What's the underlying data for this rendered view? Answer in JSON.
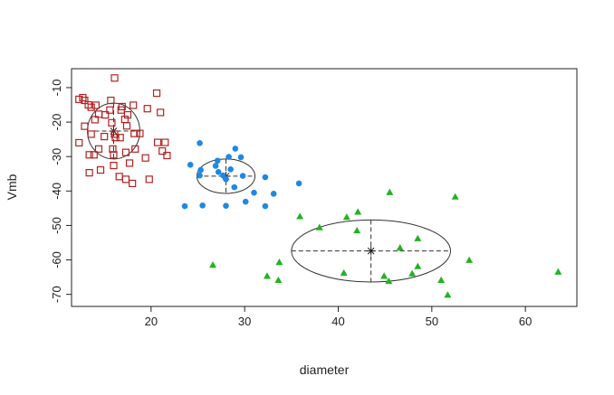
{
  "chart_data": {
    "type": "scatter",
    "title": "",
    "xlabel": "diameter",
    "ylabel": "Vmb",
    "xlim": [
      11.5,
      65.5
    ],
    "ylim": [
      -73.5,
      -4.5
    ],
    "x_ticks": [
      20,
      30,
      40,
      50,
      60
    ],
    "y_ticks": [
      -10,
      -20,
      -30,
      -40,
      -50,
      -60,
      -70
    ],
    "grid": false,
    "legend": "none",
    "series": [
      {
        "marker": "open-square",
        "color": "#b22222",
        "points": [
          [
            16.1,
            -7.2
          ],
          [
            20.6,
            -11.6
          ],
          [
            12.7,
            -12.9
          ],
          [
            12.3,
            -13.4
          ],
          [
            12.9,
            -13.7
          ],
          [
            15.7,
            -13.7
          ],
          [
            13.3,
            -15.0
          ],
          [
            14.1,
            -15.1
          ],
          [
            18.1,
            -15.1
          ],
          [
            16.9,
            -15.5
          ],
          [
            13.6,
            -15.7
          ],
          [
            19.6,
            -16.1
          ],
          [
            15.6,
            -16.5
          ],
          [
            16.8,
            -16.5
          ],
          [
            14.4,
            -17.7
          ],
          [
            21.0,
            -17.2
          ],
          [
            15.1,
            -17.9
          ],
          [
            17.5,
            -17.9
          ],
          [
            14.0,
            -19.3
          ],
          [
            17.2,
            -19.2
          ],
          [
            12.9,
            -21.2
          ],
          [
            15.8,
            -20.2
          ],
          [
            17.4,
            -21.1
          ],
          [
            13.6,
            -23.5
          ],
          [
            16.1,
            -23.5
          ],
          [
            18.2,
            -23.3
          ],
          [
            18.8,
            -23.3
          ],
          [
            15.0,
            -24.2
          ],
          [
            16.2,
            -24.5
          ],
          [
            16.7,
            -24.5
          ],
          [
            12.3,
            -26.0
          ],
          [
            20.7,
            -25.9
          ],
          [
            21.5,
            -25.9
          ],
          [
            14.4,
            -27.8
          ],
          [
            15.9,
            -27.8
          ],
          [
            18.3,
            -27.8
          ],
          [
            17.3,
            -28.8
          ],
          [
            21.2,
            -28.4
          ],
          [
            13.4,
            -29.5
          ],
          [
            16.0,
            -29.5
          ],
          [
            13.9,
            -29.5
          ],
          [
            21.7,
            -29.7
          ],
          [
            19.4,
            -30.4
          ],
          [
            17.7,
            -31.9
          ],
          [
            16.0,
            -32.6
          ],
          [
            14.6,
            -33.9
          ],
          [
            13.4,
            -34.7
          ],
          [
            16.6,
            -35.8
          ],
          [
            19.8,
            -36.6
          ],
          [
            17.3,
            -36.6
          ],
          [
            18.0,
            -37.8
          ]
        ]
      },
      {
        "marker": "filled-circle",
        "color": "#1e88e5",
        "points": [
          [
            25.2,
            -26.1
          ],
          [
            29.0,
            -27.7
          ],
          [
            28.3,
            -30.1
          ],
          [
            29.6,
            -30.2
          ],
          [
            27.1,
            -31.2
          ],
          [
            26.9,
            -32.7
          ],
          [
            24.2,
            -32.4
          ],
          [
            25.3,
            -33.9
          ],
          [
            28.5,
            -33.7
          ],
          [
            27.2,
            -34.5
          ],
          [
            27.7,
            -35.5
          ],
          [
            25.2,
            -35.5
          ],
          [
            29.8,
            -35.6
          ],
          [
            28.0,
            -36.6
          ],
          [
            32.2,
            -36.0
          ],
          [
            35.8,
            -37.8
          ],
          [
            28.9,
            -38.9
          ],
          [
            31.0,
            -40.5
          ],
          [
            33.1,
            -40.8
          ],
          [
            30.1,
            -43.1
          ],
          [
            25.5,
            -44.2
          ],
          [
            28.0,
            -44.3
          ],
          [
            32.2,
            -44.4
          ],
          [
            23.6,
            -44.4
          ]
        ]
      },
      {
        "marker": "filled-triangle",
        "color": "#22b222",
        "points": [
          [
            45.5,
            -40.4
          ],
          [
            52.5,
            -41.7
          ],
          [
            42.1,
            -46.1
          ],
          [
            40.9,
            -47.6
          ],
          [
            35.9,
            -47.4
          ],
          [
            38.0,
            -50.6
          ],
          [
            42.0,
            -51.5
          ],
          [
            48.5,
            -53.8
          ],
          [
            46.6,
            -56.5
          ],
          [
            54.0,
            -60.1
          ],
          [
            33.7,
            -60.7
          ],
          [
            48.5,
            -61.9
          ],
          [
            26.6,
            -61.5
          ],
          [
            40.6,
            -63.8
          ],
          [
            47.9,
            -64.0
          ],
          [
            63.5,
            -63.5
          ],
          [
            32.4,
            -64.7
          ],
          [
            44.9,
            -64.7
          ],
          [
            45.4,
            -66.2
          ],
          [
            33.6,
            -65.9
          ],
          [
            51.0,
            -65.9
          ],
          [
            51.7,
            -70.2
          ]
        ]
      }
    ],
    "ellipses": [
      {
        "center": [
          16.0,
          -22.6
        ],
        "semi_x": 2.8,
        "semi_y": 8.1,
        "color": "#333333"
      },
      {
        "center": [
          28.0,
          -35.7
        ],
        "semi_x": 3.1,
        "semi_y": 5.0,
        "color": "#333333"
      },
      {
        "center": [
          43.5,
          -57.4
        ],
        "semi_x": 8.5,
        "semi_y": 9.0,
        "color": "#333333"
      }
    ]
  }
}
